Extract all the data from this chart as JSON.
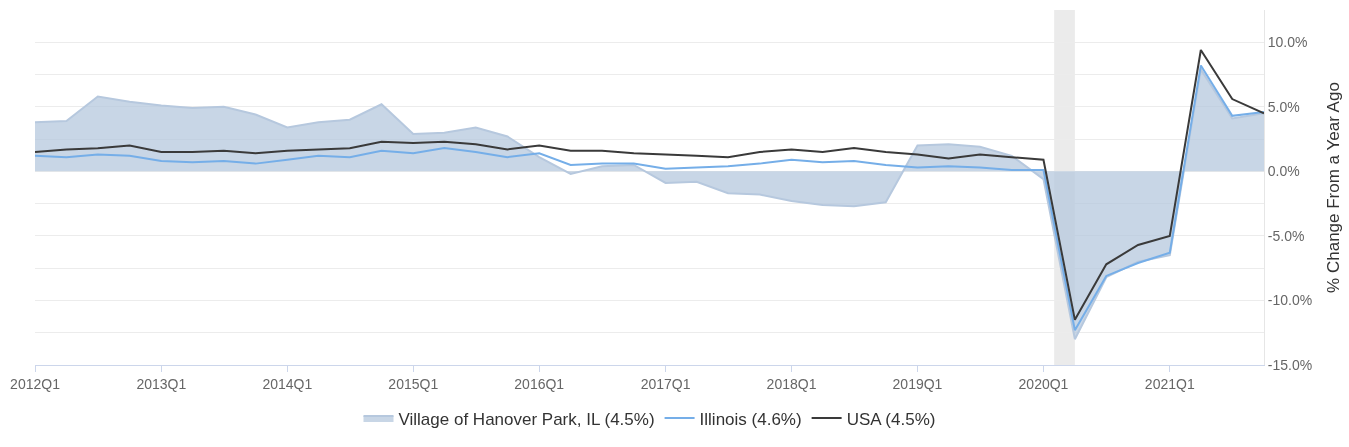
{
  "chart_data": {
    "type": "line",
    "ylabel": "% Change From a Year Ago",
    "x": [
      "2012-01-01",
      "2012-04-01",
      "2012-07-01",
      "2012-10-01",
      "2013-01-01",
      "2013-04-01",
      "2013-07-01",
      "2013-10-01",
      "2014-01-01",
      "2014-04-01",
      "2014-07-01",
      "2014-10-01",
      "2015-01-01",
      "2015-04-01",
      "2015-07-01",
      "2015-10-01",
      "2016-01-01",
      "2016-04-01",
      "2016-07-01",
      "2016-10-01",
      "2017-01-01",
      "2017-04-01",
      "2017-07-01",
      "2017-10-01",
      "2018-01-01",
      "2018-04-01",
      "2018-07-01",
      "2018-10-01",
      "2019-01-01",
      "2019-04-01",
      "2019-07-01",
      "2019-10-01",
      "2020-01-01",
      "2020-04-01",
      "2020-07-01",
      "2020-10-01",
      "2021-01-01",
      "2021-04-01",
      "2021-07-01",
      "2021-10-01"
    ],
    "series": [
      {
        "name": "Village of Hanover Park, IL (4.5%)",
        "type": "area",
        "color": "#b6c8de",
        "values": [
          3.8,
          3.9,
          5.8,
          5.4,
          5.1,
          4.9,
          5.0,
          4.4,
          3.4,
          3.8,
          4.0,
          5.2,
          2.9,
          3.0,
          3.4,
          2.7,
          1.1,
          -0.2,
          0.4,
          0.5,
          -0.9,
          -0.8,
          -1.7,
          -1.8,
          -2.3,
          -2.6,
          -2.7,
          -2.4,
          2.0,
          2.1,
          1.9,
          1.2,
          -0.6,
          -13.0,
          -8.2,
          -7.0,
          -6.5,
          7.9,
          4.1,
          4.5
        ]
      },
      {
        "name": "Illinois (4.6%)",
        "color": "#75aee8",
        "values": [
          1.2,
          1.1,
          1.3,
          1.2,
          0.8,
          0.7,
          0.8,
          0.6,
          0.9,
          1.2,
          1.1,
          1.6,
          1.4,
          1.8,
          1.5,
          1.1,
          1.4,
          0.5,
          0.6,
          0.6,
          0.2,
          0.3,
          0.4,
          0.6,
          0.9,
          0.7,
          0.8,
          0.5,
          0.3,
          0.4,
          0.3,
          0.1,
          0.1,
          -12.3,
          -8.1,
          -7.1,
          -6.3,
          8.2,
          4.3,
          4.6
        ]
      },
      {
        "name": "USA (4.5%)",
        "color": "#3a3a3a",
        "values": [
          1.5,
          1.7,
          1.8,
          2.0,
          1.5,
          1.5,
          1.6,
          1.4,
          1.6,
          1.7,
          1.8,
          2.3,
          2.2,
          2.3,
          2.1,
          1.7,
          2.0,
          1.6,
          1.6,
          1.4,
          1.3,
          1.2,
          1.1,
          1.5,
          1.7,
          1.5,
          1.8,
          1.5,
          1.3,
          1.0,
          1.3,
          1.1,
          0.9,
          -11.5,
          -7.2,
          -5.7,
          -5.0,
          9.4,
          5.6,
          4.5
        ]
      }
    ],
    "xlim": [
      "2012-01-01",
      "2021-10-01"
    ],
    "xticks": [
      {
        "value": "2012-01-01",
        "label": "2012Q1"
      },
      {
        "value": "2013-01-01",
        "label": "2013Q1"
      },
      {
        "value": "2014-01-01",
        "label": "2014Q1"
      },
      {
        "value": "2015-01-01",
        "label": "2015Q1"
      },
      {
        "value": "2016-01-01",
        "label": "2016Q1"
      },
      {
        "value": "2017-01-01",
        "label": "2017Q1"
      },
      {
        "value": "2018-01-01",
        "label": "2018Q1"
      },
      {
        "value": "2019-01-01",
        "label": "2019Q1"
      },
      {
        "value": "2020-01-01",
        "label": "2020Q1"
      },
      {
        "value": "2021-01-01",
        "label": "2021Q1"
      }
    ],
    "ylim": [
      -15,
      12.5
    ],
    "yticks": [
      {
        "value": -15,
        "label": "-15.0%"
      },
      {
        "value": -12.5,
        "label": null
      },
      {
        "value": -10,
        "label": "-10.0%"
      },
      {
        "value": -7.5,
        "label": null
      },
      {
        "value": -5,
        "label": "-5.0%"
      },
      {
        "value": -2.5,
        "label": null
      },
      {
        "value": 0,
        "label": "0.0%"
      },
      {
        "value": 2.5,
        "label": null
      },
      {
        "value": 5,
        "label": "5.0%"
      },
      {
        "value": 7.5,
        "label": null
      },
      {
        "value": 10,
        "label": "10.0%"
      }
    ],
    "bands": [
      {
        "axis": "x",
        "from": "2020-02-01",
        "to": "2020-04-01",
        "color": "#ebebeb"
      }
    ],
    "grid": "y",
    "legend": "bottom",
    "marker": "none",
    "line_style": "solid"
  }
}
